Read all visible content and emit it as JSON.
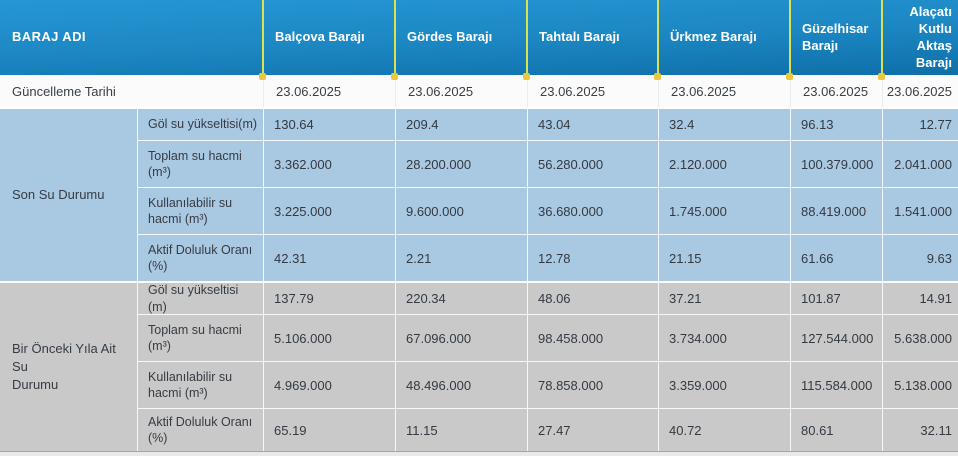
{
  "colors": {
    "header_blue_top": "#2697d4",
    "header_blue_bottom": "#0f6fa8",
    "divider_yellow": "#dce14e",
    "dot_yellow": "#e9c83f",
    "section_current_bg": "#a9c8e2",
    "section_previous_bg": "#c9c9c9",
    "date_row_bg": "#fbfbfb",
    "header_text": "#ffffff",
    "cell_text": "#363c44"
  },
  "chart_data": {
    "type": "table",
    "title": "Baraj su durumu tablosu",
    "header_label": "BARAJ ADI",
    "dams": [
      "Balçova Barajı",
      "Gördes Barajı",
      "Tahtalı Barajı",
      "Ürkmez Barajı",
      "Güzelhisar\nBarajı",
      "Alaçatı\nKutlu\nAktaş\nBarajı"
    ],
    "update": {
      "label": "Güncelleme Tarihi",
      "values": [
        "23.06.2025",
        "23.06.2025",
        "23.06.2025",
        "23.06.2025",
        "23.06.2025",
        "23.06.2025"
      ]
    },
    "sections": [
      {
        "label": "Son Su Durumu",
        "rows": [
          {
            "metric": "Göl su yükseltisi(m)",
            "values": [
              "130.64",
              "209.4",
              "43.04",
              "32.4",
              "96.13",
              "12.77"
            ]
          },
          {
            "metric": "Toplam su hacmi\n(m³)",
            "values": [
              "3.362.000",
              "28.200.000",
              "56.280.000",
              "2.120.000",
              "100.379.000",
              "2.041.000"
            ]
          },
          {
            "metric": "Kullanılabilir su\nhacmi (m³)",
            "values": [
              "3.225.000",
              "9.600.000",
              "36.680.000",
              "1.745.000",
              "88.419.000",
              "1.541.000"
            ]
          },
          {
            "metric": "Aktif Doluluk Oranı\n(%)",
            "values": [
              "42.31",
              "2.21",
              "12.78",
              "21.15",
              "61.66",
              "9.63"
            ]
          }
        ]
      },
      {
        "label": "Bir Önceki Yıla Ait Su\nDurumu",
        "rows": [
          {
            "metric": "Göl su yükseltisi (m)",
            "values": [
              "137.79",
              "220.34",
              "48.06",
              "37.21",
              "101.87",
              "14.91"
            ]
          },
          {
            "metric": "Toplam su hacmi\n(m³)",
            "values": [
              "5.106.000",
              "67.096.000",
              "98.458.000",
              "3.734.000",
              "127.544.000",
              "5.638.000"
            ]
          },
          {
            "metric": "Kullanılabilir su\nhacmi (m³)",
            "values": [
              "4.969.000",
              "48.496.000",
              "78.858.000",
              "3.359.000",
              "115.584.000",
              "5.138.000"
            ]
          },
          {
            "metric": "Aktif Doluluk Oranı\n(%)",
            "values": [
              "65.19",
              "11.15",
              "27.47",
              "40.72",
              "80.61",
              "32.11"
            ]
          }
        ]
      }
    ]
  }
}
